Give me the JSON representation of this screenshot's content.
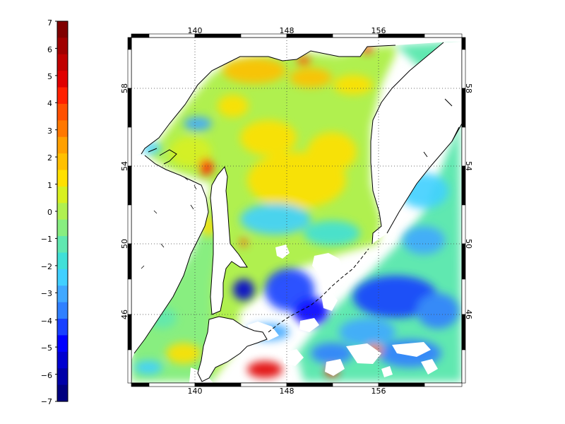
{
  "colorbar": {
    "labels": [
      "7",
      "6",
      "5",
      "4",
      "3",
      "2",
      "1",
      "0",
      "−1",
      "−2",
      "−3",
      "−4",
      "−5",
      "−6",
      "−7"
    ],
    "min": -7,
    "max": 7,
    "colors": [
      "#000080",
      "#0000a8",
      "#0000d0",
      "#0000ff",
      "#1840ff",
      "#3080ff",
      "#40a8ff",
      "#40d0ff",
      "#40e0d8",
      "#60e8b0",
      "#88ee80",
      "#b0f050",
      "#d8f020",
      "#ffe000",
      "#ffc000",
      "#ffa000",
      "#ff7800",
      "#ff5000",
      "#ff2000",
      "#e00000",
      "#c00000",
      "#a00000",
      "#800000"
    ]
  },
  "map": {
    "top_lon_labels": [
      "140",
      "148",
      "156"
    ],
    "bottom_lon_labels": [
      "140",
      "148",
      "156"
    ],
    "left_lat_labels": [
      "58",
      "54",
      "50",
      "46"
    ],
    "right_lat_labels": [
      "58",
      "54",
      "50",
      "46"
    ],
    "lon_range": [
      135,
      163
    ],
    "lat_range": [
      43,
      60
    ],
    "grid": "dotted"
  }
}
